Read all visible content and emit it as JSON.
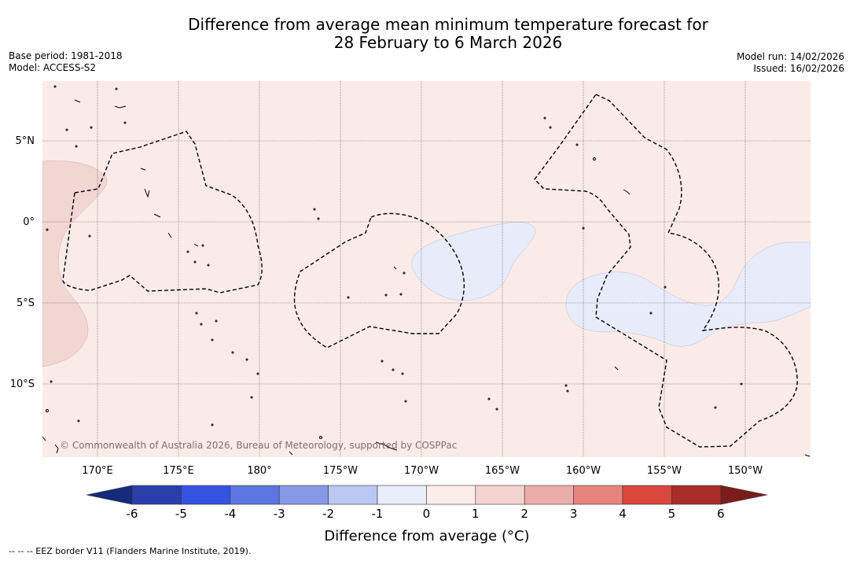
{
  "header": {
    "title_line1": "Difference from average mean minimum temperature forecast for",
    "title_line2": "28 February to 6 March 2026",
    "base_period": "Base period: 1981-2018",
    "model": "Model: ACCESS-S2",
    "model_run": "Model run: 14/02/2026",
    "issued": "Issued: 16/02/2026"
  },
  "map": {
    "lat_labels": [
      "5°N",
      "0°",
      "5°S",
      "10°S"
    ],
    "lon_labels": [
      "170°E",
      "175°E",
      "180°",
      "175°W",
      "170°W",
      "165°W",
      "160°W",
      "155°W",
      "150°W"
    ],
    "copyright": "© Commonwealth of Australia 2026, Bureau of Meteorology, supported by COSPPac",
    "background_color": "#fbebe8"
  },
  "colorbar": {
    "ticks": [
      "-6",
      "-5",
      "-4",
      "-3",
      "-2",
      "-1",
      "0",
      "1",
      "2",
      "3",
      "4",
      "5",
      "6"
    ],
    "colors": [
      "#162b7a",
      "#2b3fab",
      "#3453e0",
      "#5d76e2",
      "#8797e8",
      "#bcc6f3",
      "#e8ecfb",
      "#fcedeb",
      "#f3d3cf",
      "#ecada8",
      "#e6847b",
      "#d9473d",
      "#a82c28",
      "#7a1d1b"
    ],
    "label": "Difference from average (°C)"
  },
  "footnote": "--  --  -- EEZ border V11 (Flanders Marine Institute, 2019)."
}
